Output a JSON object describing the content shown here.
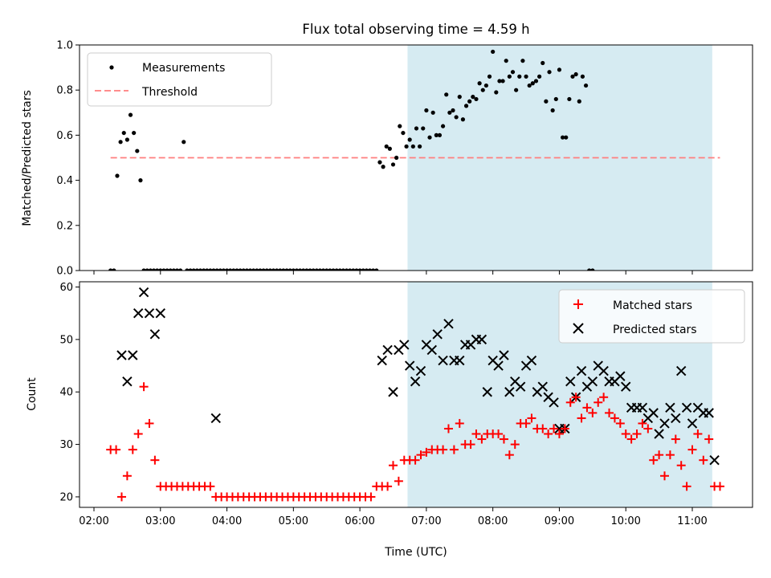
{
  "chart_data": {
    "title": "Flux total observing time = 4.59 h",
    "xlabel": "Time (UTC)",
    "x_ticks": [
      "02:00",
      "03:00",
      "04:00",
      "05:00",
      "06:00",
      "07:00",
      "08:00",
      "09:00",
      "10:00",
      "11:00"
    ],
    "shaded_window": [
      "06:43",
      "11:18"
    ],
    "shade_color": "#add8e6",
    "top": {
      "type": "scatter",
      "ylabel": "Matched/Predicted stars",
      "ylim": [
        0,
        1.0
      ],
      "y_ticks": [
        "0.0",
        "0.2",
        "0.4",
        "0.6",
        "0.8",
        "1.0"
      ],
      "threshold": 0.5,
      "threshold_range": [
        "02:15",
        "11:25"
      ],
      "threshold_color": "#ff7f7f",
      "legend": {
        "placement": "upper-left",
        "measurements": "Measurements",
        "threshold": "Threshold"
      },
      "series": [
        {
          "name": "Measurements",
          "color": "#000000",
          "x": [
            "02:15",
            "02:18",
            "02:21",
            "02:24",
            "02:27",
            "02:30",
            "02:33",
            "02:36",
            "02:39",
            "02:42",
            "02:45",
            "02:48",
            "02:51",
            "02:54",
            "02:57",
            "03:00",
            "03:03",
            "03:06",
            "03:09",
            "03:12",
            "03:15",
            "03:18",
            "03:21",
            "03:24",
            "03:27",
            "03:30",
            "03:33",
            "03:36",
            "03:39",
            "03:42",
            "03:45",
            "03:48",
            "03:51",
            "03:54",
            "03:57",
            "04:00",
            "04:03",
            "04:06",
            "04:09",
            "04:12",
            "04:15",
            "04:18",
            "04:21",
            "04:24",
            "04:27",
            "04:30",
            "04:33",
            "04:36",
            "04:39",
            "04:42",
            "04:45",
            "04:48",
            "04:51",
            "04:54",
            "04:57",
            "05:00",
            "05:03",
            "05:06",
            "05:09",
            "05:12",
            "05:15",
            "05:18",
            "05:21",
            "05:24",
            "05:27",
            "05:30",
            "05:33",
            "05:36",
            "05:39",
            "05:42",
            "05:45",
            "05:48",
            "05:51",
            "05:54",
            "05:57",
            "06:00",
            "06:03",
            "06:06",
            "06:09",
            "06:12",
            "06:15",
            "06:18",
            "06:21",
            "06:24",
            "06:27",
            "06:30",
            "06:33",
            "06:36",
            "06:39",
            "06:42",
            "06:45",
            "06:48",
            "06:51",
            "06:54",
            "06:57",
            "07:00",
            "07:03",
            "07:06",
            "07:09",
            "07:12",
            "07:15",
            "07:18",
            "07:21",
            "07:24",
            "07:27",
            "07:30",
            "07:33",
            "07:36",
            "07:39",
            "07:42",
            "07:45",
            "07:48",
            "07:51",
            "07:54",
            "07:57",
            "08:00",
            "08:03",
            "08:06",
            "08:09",
            "08:12",
            "08:15",
            "08:18",
            "08:21",
            "08:24",
            "08:27",
            "08:30",
            "08:33",
            "08:36",
            "08:39",
            "08:42",
            "08:45",
            "08:48",
            "08:51",
            "08:54",
            "08:57",
            "09:00",
            "09:03",
            "09:06",
            "09:09",
            "09:12",
            "09:15",
            "09:18",
            "09:21",
            "09:24",
            "09:27",
            "09:30",
            "09:33",
            "09:36",
            "09:39",
            "09:42",
            "09:45",
            "09:48",
            "09:51",
            "09:54",
            "09:57",
            "10:00",
            "10:03",
            "10:06",
            "10:09",
            "10:12",
            "10:15",
            "10:18",
            "10:21",
            "10:24",
            "10:27",
            "10:30",
            "10:33",
            "10:36",
            "10:39",
            "10:42",
            "10:45",
            "10:48",
            "10:51",
            "10:54",
            "10:57",
            "11:00",
            "11:03",
            "11:06",
            "11:09",
            "11:12",
            "11:15",
            "11:18",
            "11:21",
            "11:24",
            "11:27"
          ],
          "y": [
            0,
            0,
            0.42,
            0.57,
            0.61,
            0.58,
            0.69,
            0.61,
            0.53,
            0.4,
            0,
            0,
            0,
            0,
            0,
            0,
            0,
            0,
            0,
            0,
            0,
            0,
            0.57,
            0,
            0,
            0,
            0,
            0,
            0,
            0,
            0,
            0,
            0,
            0,
            0,
            0,
            0,
            0,
            0,
            0,
            0,
            0,
            0,
            0,
            0,
            0,
            0,
            0,
            0,
            0,
            0,
            0,
            0,
            0,
            0,
            0,
            0,
            0,
            0,
            0,
            0,
            0,
            0,
            0,
            0,
            0,
            0,
            0,
            0,
            0,
            0,
            0,
            0,
            0,
            0,
            0,
            0,
            0,
            0,
            0,
            0,
            0.48,
            0.46,
            0.55,
            0.54,
            0.47,
            0.5,
            0.64,
            0.61,
            0.55,
            0.58,
            0.55,
            0.63,
            0.55,
            0.63,
            0.71,
            0.59,
            0.7,
            0.6,
            0.6,
            0.64,
            0.78,
            0.7,
            0.71,
            0.68,
            0.77,
            0.67,
            0.73,
            0.75,
            0.77,
            0.76,
            0.83,
            0.8,
            0.82,
            0.86,
            0.97,
            0.79,
            0.84,
            0.84,
            0.93,
            0.86,
            0.88,
            0.8,
            0.86,
            0.93,
            0.86,
            0.82,
            0.83,
            0.84,
            0.86,
            0.92,
            0.75,
            0.88,
            0.71,
            0.76,
            0.89,
            0.59,
            0.59,
            0.76,
            0.86,
            0.87,
            0.75,
            0.86,
            0.82,
            0,
            0
          ]
        }
      ]
    },
    "bottom": {
      "type": "scatter",
      "ylabel": "Count",
      "ylim": [
        18,
        61
      ],
      "y_ticks": [
        "20",
        "30",
        "40",
        "50",
        "60"
      ],
      "legend": {
        "placement": "upper-right"
      },
      "series": [
        {
          "name": "Matched stars",
          "color": "#ff0000",
          "marker": "+",
          "x": [
            "02:15",
            "02:20",
            "02:25",
            "02:30",
            "02:35",
            "02:40",
            "02:45",
            "02:50",
            "02:55",
            "03:00",
            "03:05",
            "03:10",
            "03:15",
            "03:20",
            "03:25",
            "03:30",
            "03:35",
            "03:40",
            "03:45",
            "03:50",
            "03:55",
            "04:00",
            "04:05",
            "04:10",
            "04:15",
            "04:20",
            "04:25",
            "04:30",
            "04:35",
            "04:40",
            "04:45",
            "04:50",
            "04:55",
            "05:00",
            "05:05",
            "05:10",
            "05:15",
            "05:20",
            "05:25",
            "05:30",
            "05:35",
            "05:40",
            "05:45",
            "05:50",
            "05:55",
            "06:00",
            "06:05",
            "06:10",
            "06:15",
            "06:20",
            "06:25",
            "06:30",
            "06:35",
            "06:40",
            "06:45",
            "06:50",
            "06:55",
            "07:00",
            "07:05",
            "07:10",
            "07:15",
            "07:20",
            "07:25",
            "07:30",
            "07:35",
            "07:40",
            "07:45",
            "07:50",
            "07:55",
            "08:00",
            "08:05",
            "08:10",
            "08:15",
            "08:20",
            "08:25",
            "08:30",
            "08:35",
            "08:40",
            "08:45",
            "08:50",
            "08:55",
            "09:00",
            "09:05",
            "09:10",
            "09:15",
            "09:20",
            "09:25",
            "09:30",
            "09:35",
            "09:40",
            "09:45",
            "09:50",
            "09:55",
            "10:00",
            "10:05",
            "10:10",
            "10:15",
            "10:20",
            "10:25",
            "10:30",
            "10:35",
            "10:40",
            "10:45",
            "10:50",
            "10:55",
            "11:00",
            "11:05",
            "11:10",
            "11:15",
            "11:20",
            "11:25"
          ],
          "y": [
            29,
            29,
            20,
            24,
            29,
            32,
            41,
            34,
            27,
            22,
            22,
            22,
            22,
            22,
            22,
            22,
            22,
            22,
            22,
            20,
            20,
            20,
            20,
            20,
            20,
            20,
            20,
            20,
            20,
            20,
            20,
            20,
            20,
            20,
            20,
            20,
            20,
            20,
            20,
            20,
            20,
            20,
            20,
            20,
            20,
            20,
            20,
            20,
            22,
            22,
            22,
            26,
            23,
            27,
            27,
            27,
            28,
            28.5,
            29,
            29,
            29,
            33,
            29,
            34,
            30,
            30,
            32,
            31,
            32,
            32,
            32,
            31,
            28,
            30,
            34,
            34,
            35,
            33,
            33,
            32,
            33,
            32,
            33,
            38,
            39,
            35,
            37,
            36,
            38,
            39,
            36,
            35,
            34,
            32,
            31,
            32,
            34,
            33,
            27,
            28,
            24,
            28,
            31,
            26,
            22,
            29,
            32,
            27,
            31,
            22,
            22
          ]
        },
        {
          "name": "Predicted stars",
          "color": "#000000",
          "marker": "x",
          "x": [
            "02:25",
            "02:30",
            "02:35",
            "02:40",
            "02:45",
            "02:50",
            "02:55",
            "03:00",
            "03:50",
            "06:20",
            "06:25",
            "06:30",
            "06:35",
            "06:40",
            "06:45",
            "06:50",
            "06:55",
            "07:00",
            "07:05",
            "07:10",
            "07:15",
            "07:20",
            "07:25",
            "07:30",
            "07:35",
            "07:40",
            "07:45",
            "07:50",
            "07:55",
            "08:00",
            "08:05",
            "08:10",
            "08:15",
            "08:20",
            "08:25",
            "08:30",
            "08:35",
            "08:40",
            "08:45",
            "08:50",
            "08:55",
            "09:00",
            "09:05",
            "09:10",
            "09:15",
            "09:20",
            "09:25",
            "09:30",
            "09:35",
            "09:40",
            "09:45",
            "09:50",
            "09:55",
            "10:00",
            "10:05",
            "10:10",
            "10:15",
            "10:20",
            "10:25",
            "10:30",
            "10:35",
            "10:40",
            "10:45",
            "10:50",
            "10:55",
            "11:00",
            "11:05",
            "11:10",
            "11:15",
            "11:20"
          ],
          "y": [
            47,
            42,
            47,
            55,
            59,
            55,
            51,
            55,
            35,
            46,
            48,
            40,
            48,
            49,
            45,
            42,
            44,
            49,
            48,
            51,
            46,
            53,
            46,
            46,
            49,
            49,
            50,
            50,
            40,
            46,
            45,
            47,
            40,
            42,
            41,
            45,
            46,
            40,
            41,
            39,
            38,
            33,
            33,
            42,
            39,
            44,
            41,
            42,
            45,
            44,
            42,
            42,
            43,
            41,
            37,
            37,
            37,
            35,
            36,
            32,
            34,
            37,
            35,
            44,
            37,
            34,
            37,
            36,
            36,
            27
          ]
        }
      ]
    }
  }
}
